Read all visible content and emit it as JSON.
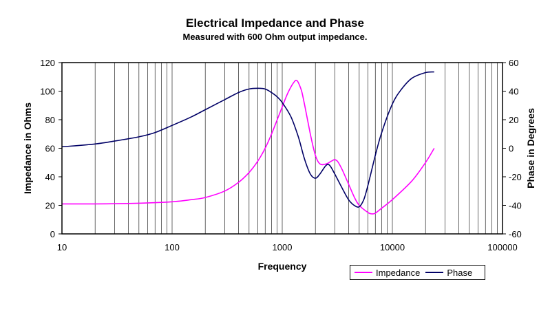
{
  "chart_data": {
    "type": "line",
    "title": "Electrical Impedance and Phase",
    "subtitle": "Measured with 600 Ohm output impedance.",
    "xlabel": "Frequency",
    "ylabel": "Impedance in Ohms",
    "y2label": "Phase in Degrees",
    "xscale": "log",
    "xlim": [
      10,
      100000
    ],
    "ylim": [
      0,
      120
    ],
    "y2lim": [
      -60,
      60
    ],
    "x_ticks": [
      "10",
      "100",
      "1000",
      "10000",
      "100000"
    ],
    "y_ticks": [
      "0",
      "20",
      "40",
      "60",
      "80",
      "100",
      "120"
    ],
    "y2_ticks": [
      "-60",
      "-40",
      "-20",
      "0",
      "20",
      "40",
      "60"
    ],
    "grid": "vertical-log",
    "legend_position": "bottom-right",
    "series": [
      {
        "name": "Impedance",
        "axis": "left",
        "color": "#ff00ff",
        "x": [
          10,
          20,
          50,
          100,
          150,
          200,
          300,
          400,
          500,
          600,
          700,
          800,
          900,
          1000,
          1100,
          1200,
          1300,
          1350,
          1400,
          1500,
          1600,
          1800,
          2000,
          2200,
          2500,
          2800,
          3000,
          3200,
          3500,
          4000,
          4500,
          5000,
          6000,
          6500,
          7000,
          8000,
          10000,
          15000,
          20000,
          24000
        ],
        "values": [
          21,
          21,
          21.5,
          22.5,
          24,
          25.5,
          30,
          36,
          43,
          51,
          60,
          70,
          80,
          89,
          97,
          103,
          107,
          107.5,
          106,
          100,
          90,
          70,
          55,
          49,
          49,
          51,
          52,
          50.5,
          45,
          35,
          26,
          20,
          15,
          14,
          14.5,
          18,
          24,
          37,
          50,
          60
        ]
      },
      {
        "name": "Phase",
        "axis": "right",
        "color": "#000066",
        "x": [
          10,
          20,
          30,
          50,
          70,
          100,
          150,
          200,
          300,
          400,
          500,
          600,
          700,
          800,
          900,
          1000,
          1200,
          1400,
          1600,
          1800,
          2000,
          2200,
          2500,
          2700,
          3000,
          3500,
          4000,
          4500,
          5000,
          5500,
          6000,
          7000,
          8000,
          10000,
          12000,
          15000,
          20000,
          24000
        ],
        "values": [
          1,
          3,
          5,
          8,
          11,
          16,
          22,
          27,
          34,
          39,
          41.5,
          42,
          41.5,
          39,
          36,
          32,
          22,
          8,
          -8,
          -18,
          -21,
          -18,
          -12,
          -12,
          -18,
          -28,
          -36,
          -40,
          -41,
          -36,
          -26,
          -5,
          11,
          31,
          41,
          49,
          53,
          53.5
        ]
      }
    ]
  }
}
